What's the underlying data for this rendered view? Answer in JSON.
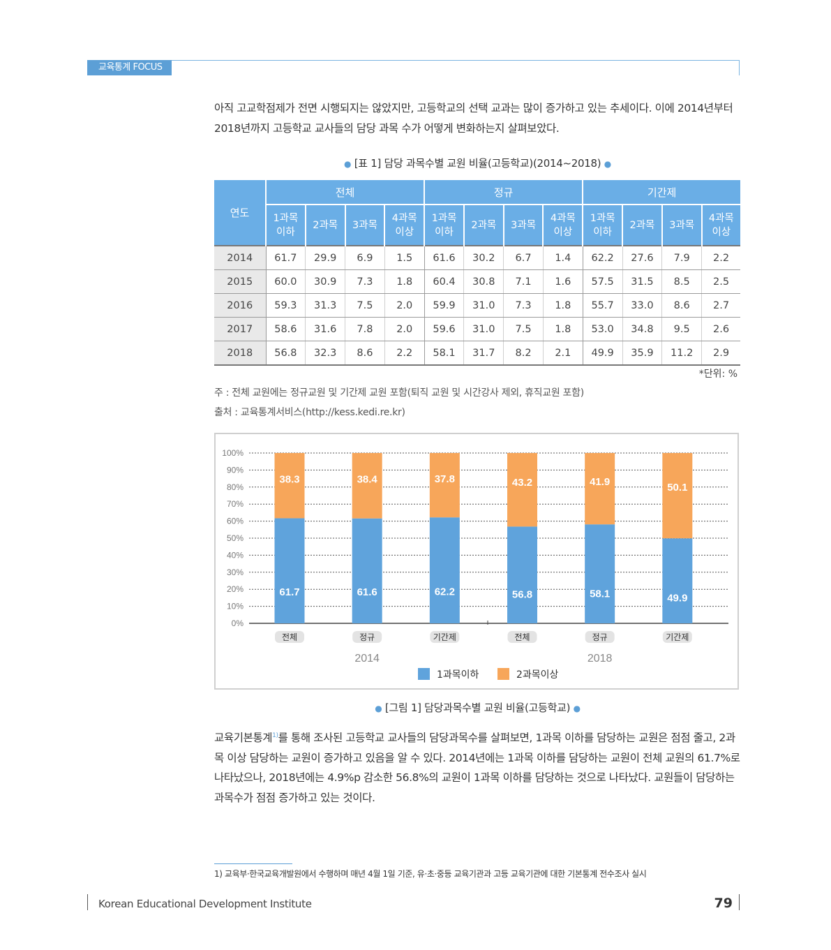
{
  "header": {
    "tag": "교육통계 FOCUS"
  },
  "intro": "아직 고교학점제가 전면 시행되지는 않았지만, 고등학교의 선택 교과는 많이 증가하고 있는 추세이다. 이에 2014년부터 2018년까지 고등학교 교사들의 담당 과목 수가 어떻게 변화하는지 살펴보았다.",
  "table": {
    "caption": "[표 1] 담당 과목수별 교원 비율(고등학교)(2014~2018)",
    "year_header": "연도",
    "groups": [
      "전체",
      "정규",
      "기간제"
    ],
    "subheaders": [
      "1과목\n이하",
      "2과목",
      "3과목",
      "4과목\n이상"
    ],
    "rows": [
      {
        "year": "2014",
        "values": [
          "61.7",
          "29.9",
          "6.9",
          "1.5",
          "61.6",
          "30.2",
          "6.7",
          "1.4",
          "62.2",
          "27.6",
          "7.9",
          "2.2"
        ]
      },
      {
        "year": "2015",
        "values": [
          "60.0",
          "30.9",
          "7.3",
          "1.8",
          "60.4",
          "30.8",
          "7.1",
          "1.6",
          "57.5",
          "31.5",
          "8.5",
          "2.5"
        ]
      },
      {
        "year": "2016",
        "values": [
          "59.3",
          "31.3",
          "7.5",
          "2.0",
          "59.9",
          "31.0",
          "7.3",
          "1.8",
          "55.7",
          "33.0",
          "8.6",
          "2.7"
        ]
      },
      {
        "year": "2017",
        "values": [
          "58.6",
          "31.6",
          "7.8",
          "2.0",
          "59.6",
          "31.0",
          "7.5",
          "1.8",
          "53.0",
          "34.8",
          "9.5",
          "2.6"
        ]
      },
      {
        "year": "2018",
        "values": [
          "56.8",
          "32.3",
          "8.6",
          "2.2",
          "58.1",
          "31.7",
          "8.2",
          "2.1",
          "49.9",
          "35.9",
          "11.2",
          "2.9"
        ]
      }
    ],
    "unit": "*단위: %",
    "note": "주 : 전체 교원에는 정규교원 및 기간제 교원 포함(퇴직 교원 및 시간강사 제외, 휴직교원 포함)",
    "source": "출처 : 교육통계서비스(http://kess.kedi.re.kr)"
  },
  "chart_data": {
    "type": "bar",
    "stacked": true,
    "categories": [
      "전체",
      "정규",
      "기간제",
      "전체",
      "정규",
      "기간제"
    ],
    "groups": [
      {
        "label": "2014",
        "span": [
          0,
          2
        ]
      },
      {
        "label": "2018",
        "span": [
          3,
          5
        ]
      }
    ],
    "series": [
      {
        "name": "1과목이하",
        "color": "#5fa3dc",
        "values": [
          61.7,
          61.6,
          62.2,
          56.8,
          58.1,
          49.9
        ]
      },
      {
        "name": "2과목이상",
        "color": "#f7a65a",
        "values": [
          38.3,
          38.4,
          37.8,
          43.2,
          41.9,
          50.1
        ]
      }
    ],
    "yticks": [
      "0%",
      "10%",
      "20%",
      "30%",
      "40%",
      "50%",
      "60%",
      "70%",
      "80%",
      "90%",
      "100%"
    ],
    "ylim": [
      0,
      100
    ],
    "grid": true,
    "legend": "bottom"
  },
  "figure_caption": "[그림 1] 담당과목수별 교원 비율(고등학교)",
  "body": {
    "part1": "교육기본통계",
    "fn_mark": "1)",
    "part2": "를 통해 조사된 고등학교 교사들의 담당과목수를 살펴보면, 1과목 이하를 담당하는 교원은 점점 줄고, 2과목 이상 담당하는 교원이 증가하고 있음을 알 수 있다. 2014년에는 1과목 이하를 담당하는 교원이 전체 교원의 61.7%로 나타났으나, 2018년에는 4.9%p 감소한 56.8%의 교원이 1과목 이하를 담당하는 것으로 나타났다. 교원들이 담당하는 과목수가 점점 증가하고 있는 것이다."
  },
  "footnote": "1) 교육부·한국교육개발원에서 수행하며 매년 4월 1일 기준, 유·초·중등 교육기관과 고등 교육기관에 대한 기본통계 전수조사 실시",
  "footer": {
    "org": "Korean Educational Development Institute",
    "page": "79"
  }
}
